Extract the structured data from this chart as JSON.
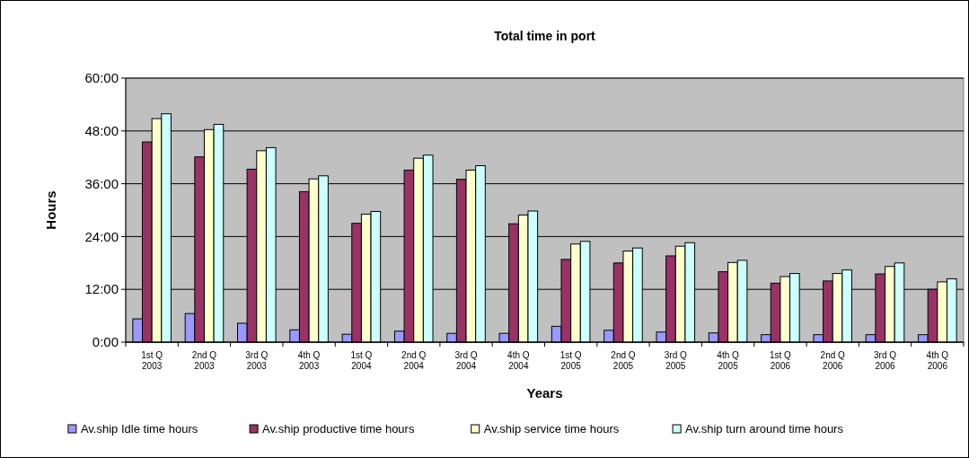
{
  "chart_data": {
    "type": "bar",
    "title": "Total time in port",
    "xlabel": "Years",
    "ylabel": "Hours",
    "categories": [
      "1st Q 2003",
      "2nd Q 2003",
      "3rd Q 2003",
      "4th Q 2003",
      "1st Q 2004",
      "2nd Q 2004",
      "3rd Q 2004",
      "4th Q 2004",
      "1st Q 2005",
      "2nd Q 2005",
      "3rd Q 2005",
      "4th Q 2005",
      "1st Q 2006",
      "2nd Q 2006",
      "3rd Q 2006",
      "4th Q 2006"
    ],
    "series": [
      {
        "name": "Av.ship Idle time hours",
        "color": "#9999ff",
        "values": [
          5.3,
          6.5,
          4.3,
          2.8,
          1.8,
          2.5,
          2.0,
          2.0,
          3.6,
          2.7,
          2.3,
          2.1,
          1.7,
          1.7,
          1.7,
          1.7
        ]
      },
      {
        "name": "Av.ship productive time hours",
        "color": "#993366",
        "values": [
          45.5,
          42.1,
          39.3,
          34.2,
          27.0,
          39.1,
          37.0,
          26.9,
          18.8,
          18.0,
          19.6,
          16.0,
          13.4,
          13.9,
          15.5,
          12.0
        ]
      },
      {
        "name": "Av.ship service time hours",
        "color": "#ffffcc",
        "values": [
          50.8,
          48.3,
          43.5,
          37.1,
          29.1,
          41.8,
          39.1,
          28.9,
          22.3,
          20.7,
          21.8,
          18.1,
          14.9,
          15.6,
          17.2,
          13.7
        ]
      },
      {
        "name": "Av.ship turn around time hours",
        "color": "#ccffff",
        "values": [
          51.9,
          49.5,
          44.2,
          37.8,
          29.7,
          42.5,
          40.1,
          29.8,
          22.9,
          21.4,
          22.6,
          18.6,
          15.6,
          16.4,
          18.0,
          14.4
        ]
      }
    ],
    "ylim": [
      0,
      60
    ],
    "yticks": [
      {
        "value": 0,
        "label": "0:00"
      },
      {
        "value": 12,
        "label": "12:00"
      },
      {
        "value": 24,
        "label": "24:00"
      },
      {
        "value": 36,
        "label": "36:00"
      },
      {
        "value": 48,
        "label": "48:00"
      },
      {
        "value": 60,
        "label": "60:00"
      }
    ],
    "grid": "y",
    "legend": "bottom"
  }
}
